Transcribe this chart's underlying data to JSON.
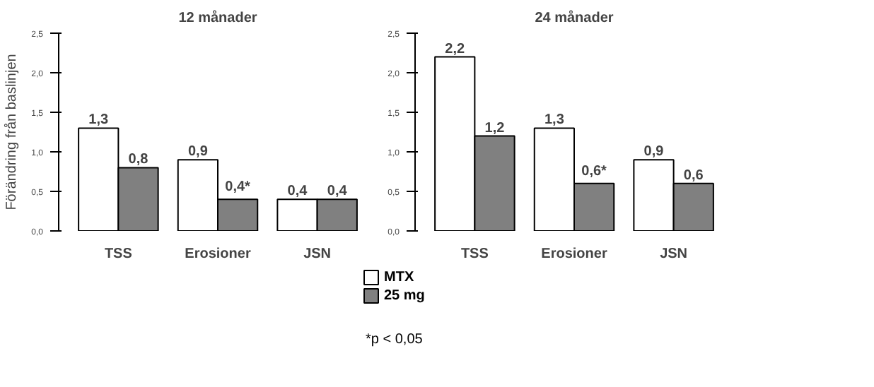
{
  "chart_data": [
    {
      "type": "bar",
      "title": "12 månader",
      "ylabel": "Förändring från baslinjen",
      "categories": [
        "TSS",
        "Erosioner",
        "JSN"
      ],
      "series": [
        {
          "color": "#ffffff",
          "values": [
            1.3,
            0.9,
            0.4
          ],
          "value_labels": [
            "1,3",
            "0,9",
            "0,4"
          ]
        },
        {
          "color": "#808080",
          "values": [
            0.8,
            0.4,
            0.4
          ],
          "value_labels": [
            "0,8",
            "0,4*",
            "0,4"
          ]
        }
      ],
      "ylim": [
        0,
        2.5
      ],
      "yticks": [
        {
          "value": 0,
          "label": "0,0"
        },
        {
          "value": 0.5,
          "label": "0,5"
        },
        {
          "value": 1,
          "label": "1,0"
        },
        {
          "value": 1.5,
          "label": "1,5"
        },
        {
          "value": 2,
          "label": "2,0"
        },
        {
          "value": 2.5,
          "label": "2,5"
        }
      ],
      "grid": false
    },
    {
      "type": "bar",
      "title": "24 månader",
      "categories": [
        "TSS",
        "Erosioner",
        "JSN"
      ],
      "series": [
        {
          "name": "MTX",
          "color": "#ffffff",
          "values": [
            2.2,
            1.3,
            0.9
          ],
          "value_labels": [
            "2,2",
            "1,3",
            "0,9"
          ]
        },
        {
          "name": "25 mg",
          "color": "#808080",
          "values": [
            1.2,
            0.6,
            0.6
          ],
          "value_labels": [
            "1,2",
            "0,6*",
            "0,6"
          ]
        }
      ],
      "ylim": [
        0,
        2.5
      ],
      "yticks": [
        {
          "value": 0,
          "label": "0,0"
        },
        {
          "value": 0.5,
          "label": "0,5"
        },
        {
          "value": 1,
          "label": "1,0"
        },
        {
          "value": 1.5,
          "label": "1,5"
        },
        {
          "value": 2,
          "label": "2,0"
        },
        {
          "value": 2.5,
          "label": "2,5"
        }
      ],
      "grid": false,
      "legend": "bottom left",
      "annotations": [
        "*p < 0,05"
      ]
    }
  ]
}
